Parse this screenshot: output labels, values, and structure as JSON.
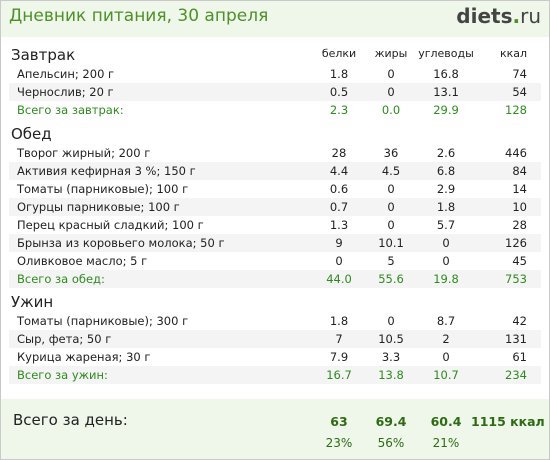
{
  "header": {
    "title": "Дневник питания, 30 апреля",
    "logo_part1": "diets",
    "logo_part2": ".",
    "logo_part3": "ru"
  },
  "columns": {
    "protein": "белки",
    "fat": "жиры",
    "carbs": "углеводы",
    "kcal": "ккал"
  },
  "sections": {
    "breakfast": {
      "title": "Завтрак",
      "items": [
        {
          "name": "Апельсин; 200 г",
          "protein": "1.8",
          "fat": "0",
          "carbs": "16.8",
          "kcal": "74"
        },
        {
          "name": "Чернослив; 20 г",
          "protein": "0.5",
          "fat": "0",
          "carbs": "13.1",
          "kcal": "54"
        }
      ],
      "total": {
        "label": "Всего за завтрак:",
        "protein": "2.3",
        "fat": "0.0",
        "carbs": "29.9",
        "kcal": "128"
      }
    },
    "lunch": {
      "title": "Обед",
      "items": [
        {
          "name": "Творог жирный; 200 г",
          "protein": "28",
          "fat": "36",
          "carbs": "2.6",
          "kcal": "446"
        },
        {
          "name": "Активия кефирная 3 %; 150 г",
          "protein": "4.4",
          "fat": "4.5",
          "carbs": "6.8",
          "kcal": "84"
        },
        {
          "name": "Томаты (парниковые); 100 г",
          "protein": "0.6",
          "fat": "0",
          "carbs": "2.9",
          "kcal": "14"
        },
        {
          "name": "Огурцы парниковые; 100 г",
          "protein": "0.7",
          "fat": "0",
          "carbs": "1.8",
          "kcal": "10"
        },
        {
          "name": "Перец красный сладкий; 100 г",
          "protein": "1.3",
          "fat": "0",
          "carbs": "5.7",
          "kcal": "28"
        },
        {
          "name": "Брынза из коровьего молока; 50 г",
          "protein": "9",
          "fat": "10.1",
          "carbs": "0",
          "kcal": "126"
        },
        {
          "name": "Оливковое масло; 5 г",
          "protein": "0",
          "fat": "5",
          "carbs": "0",
          "kcal": "45"
        }
      ],
      "total": {
        "label": "Всего за обед:",
        "protein": "44.0",
        "fat": "55.6",
        "carbs": "19.8",
        "kcal": "753"
      }
    },
    "dinner": {
      "title": "Ужин",
      "items": [
        {
          "name": "Томаты (парниковые); 300 г",
          "protein": "1.8",
          "fat": "0",
          "carbs": "8.7",
          "kcal": "42"
        },
        {
          "name": "Сыр, фета; 50 г",
          "protein": "7",
          "fat": "10.5",
          "carbs": "2",
          "kcal": "131"
        },
        {
          "name": "Курица жареная; 30 г",
          "protein": "7.9",
          "fat": "3.3",
          "carbs": "0",
          "kcal": "61"
        }
      ],
      "total": {
        "label": "Всего за ужин:",
        "protein": "16.7",
        "fat": "13.8",
        "carbs": "10.7",
        "kcal": "234"
      }
    }
  },
  "day_total": {
    "label": "Всего за день:",
    "protein": "63",
    "fat": "69.4",
    "carbs": "60.4",
    "kcal": "1115 ккал",
    "protein_pct": "23%",
    "fat_pct": "56%",
    "carbs_pct": "21%"
  },
  "colors": {
    "accent_green": "#4e9128",
    "total_green": "#2e8b1e",
    "header_bg": "#eef7ea",
    "row_alt_bg": "#f4f4f4"
  }
}
